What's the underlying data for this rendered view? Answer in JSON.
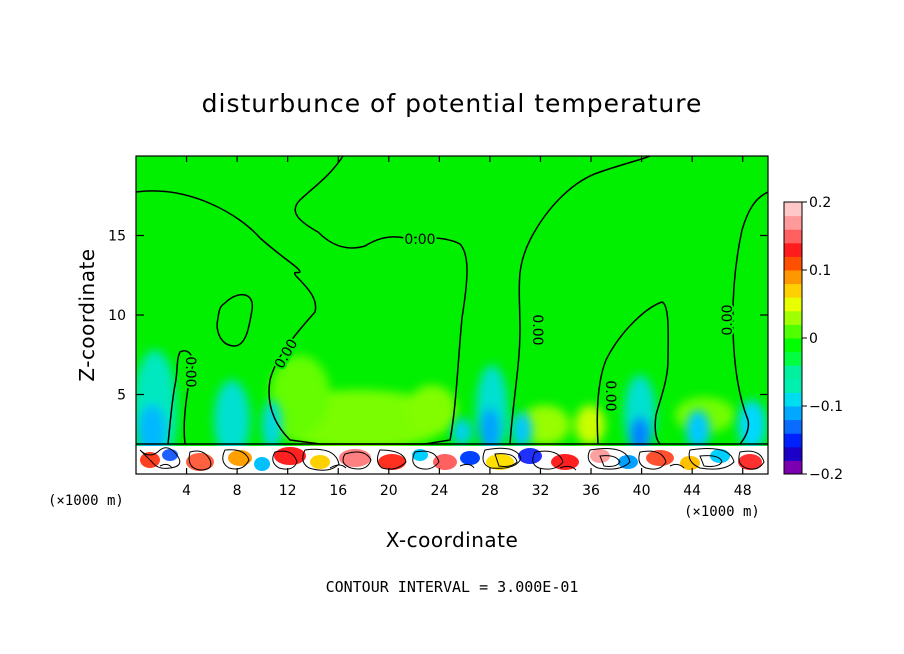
{
  "chart_data": {
    "type": "heatmap",
    "title": "disturbunce of potential temperature",
    "xlabel": "X-coordinate",
    "ylabel": "Z-coordinate",
    "x_unit": "(×1000 m)",
    "z_unit": "(×1000 m)",
    "xlim": [
      0,
      50
    ],
    "zlim": [
      0,
      20
    ],
    "x_ticks": [
      4,
      8,
      12,
      16,
      20,
      24,
      28,
      32,
      36,
      40,
      44,
      48
    ],
    "x_tick_labels": [
      "4",
      "8",
      "12",
      "16",
      "20",
      "24",
      "28",
      "32",
      "36",
      "40",
      "44",
      "48"
    ],
    "z_ticks": [
      5,
      10,
      15
    ],
    "z_tick_labels": [
      "5",
      "10",
      "15"
    ],
    "colorbar": {
      "range": [
        -0.2,
        0.2
      ],
      "tick_labels": [
        "0.2",
        "0.1",
        "0",
        "−0.1",
        "−0.2"
      ],
      "tick_values": [
        0.2,
        0.1,
        0,
        -0.1,
        -0.2
      ],
      "colors": [
        "#7a00b0",
        "#1c00c8",
        "#0022ff",
        "#0a6cff",
        "#00a8ff",
        "#00dcf0",
        "#00f0b0",
        "#00f0a0",
        "#00ff40",
        "#00ff00",
        "#50ff00",
        "#a0ff00",
        "#e8ff00",
        "#ffd000",
        "#ff9800",
        "#ff5000",
        "#ff1c1c",
        "#ff6060",
        "#ff9a9a",
        "#ffc8c8"
      ]
    },
    "contour_label": "0.00",
    "contour_interval_text": "CONTOUR INTERVAL = 3.000E-01",
    "grid": false
  }
}
